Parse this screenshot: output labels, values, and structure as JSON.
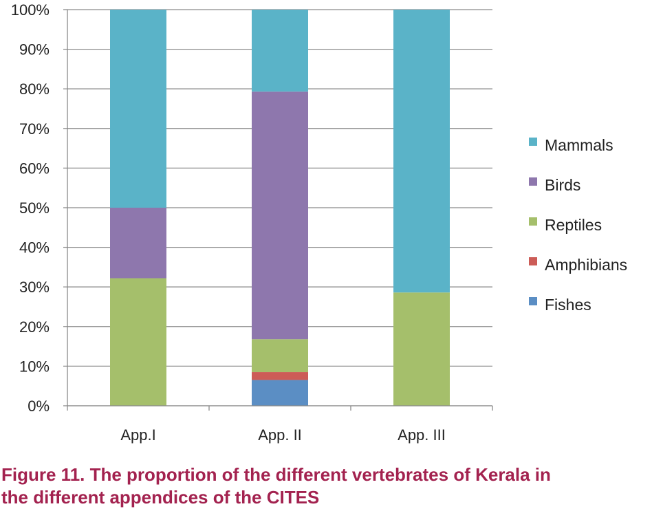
{
  "caption": {
    "line1": "Figure 11. The proportion of the different vertebrates of Kerala in",
    "line2": "the different appendices of  the CITES"
  },
  "chart_data": {
    "type": "bar",
    "stacked": true,
    "percent": true,
    "categories": [
      "App.I",
      "App. II",
      "App. III"
    ],
    "ylim": [
      0,
      100
    ],
    "yticks": [
      "0%",
      "10%",
      "20%",
      "30%",
      "40%",
      "50%",
      "60%",
      "70%",
      "80%",
      "90%",
      "100%"
    ],
    "grid": true,
    "legend_position": "right",
    "series": [
      {
        "name": "Fishes",
        "color": "#5b8ec4",
        "values": [
          0,
          6.5,
          0
        ]
      },
      {
        "name": "Amphibians",
        "color": "#cc5c57",
        "values": [
          0,
          2.0,
          0
        ]
      },
      {
        "name": "Reptiles",
        "color": "#a5bf6b",
        "values": [
          32.2,
          8.3,
          28.6
        ]
      },
      {
        "name": "Birds",
        "color": "#8e77ad",
        "values": [
          17.8,
          62.5,
          0
        ]
      },
      {
        "name": "Mammals",
        "color": "#5ab3c8",
        "values": [
          50.0,
          20.7,
          71.4
        ]
      }
    ]
  }
}
